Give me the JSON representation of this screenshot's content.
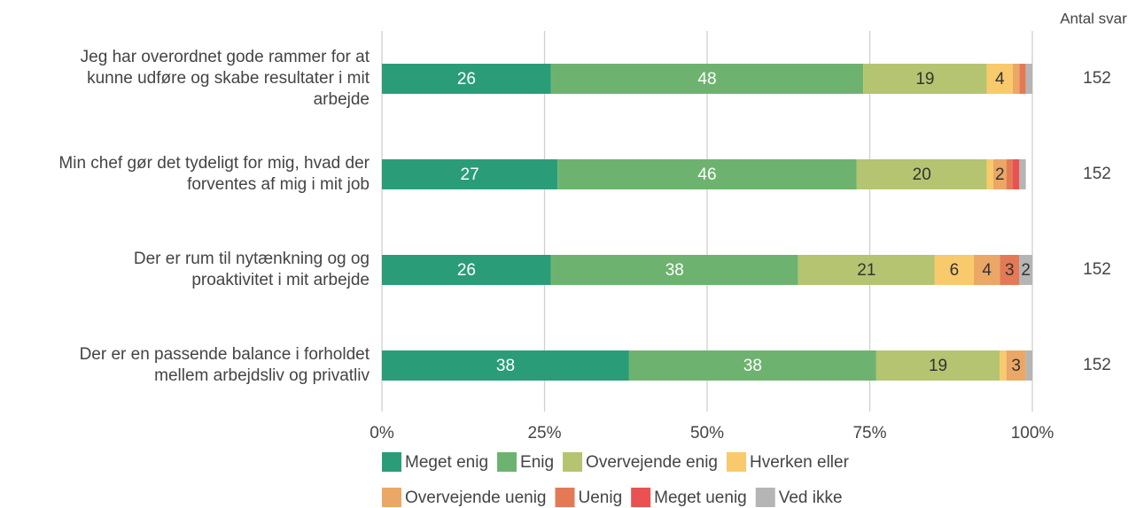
{
  "chart_data": {
    "type": "stacked_barh",
    "categories": [
      "Jeg har overordnet gode rammer for at\nkunne udføre og skabe resultater i mit\narbejde",
      "Min chef gør det tydeligt for mig, hvad der\nforventes af mig i mit job",
      "Der er rum til nytænkning og og\nproaktivitet i mit arbejde",
      "Der er en passende balance i forholdet\nmellem arbejdsliv og privatliv"
    ],
    "series": [
      {
        "name": "Meget enig",
        "color": "#2a9d78",
        "values": [
          26,
          27,
          26,
          38
        ]
      },
      {
        "name": "Enig",
        "color": "#6db36f",
        "values": [
          48,
          46,
          38,
          38
        ]
      },
      {
        "name": "Overvejende enig",
        "color": "#b5c470",
        "values": [
          19,
          20,
          21,
          19
        ]
      },
      {
        "name": "Hverken eller",
        "color": "#f8ca6c",
        "values": [
          4,
          1,
          6,
          1
        ]
      },
      {
        "name": "Overvejende uenig",
        "color": "#eba766",
        "values": [
          1,
          2,
          4,
          3
        ]
      },
      {
        "name": "Uenig",
        "color": "#e37a55",
        "values": [
          1,
          1,
          3,
          0
        ]
      },
      {
        "name": "Meget uenig",
        "color": "#ea5153",
        "values": [
          0,
          1,
          0,
          0
        ]
      },
      {
        "name": "Ved ikke",
        "color": "#b5b5b5",
        "values": [
          1,
          1,
          2,
          1
        ]
      }
    ],
    "xlim": [
      0,
      100
    ],
    "xticks": [
      {
        "value": 0,
        "label": "0%"
      },
      {
        "value": 25,
        "label": "25%"
      },
      {
        "value": 50,
        "label": "50%"
      },
      {
        "value": 75,
        "label": "75%"
      },
      {
        "value": 100,
        "label": "100%"
      }
    ],
    "grid": true,
    "counts_title": "Antal svar",
    "counts": [
      152,
      152,
      152,
      152
    ]
  }
}
